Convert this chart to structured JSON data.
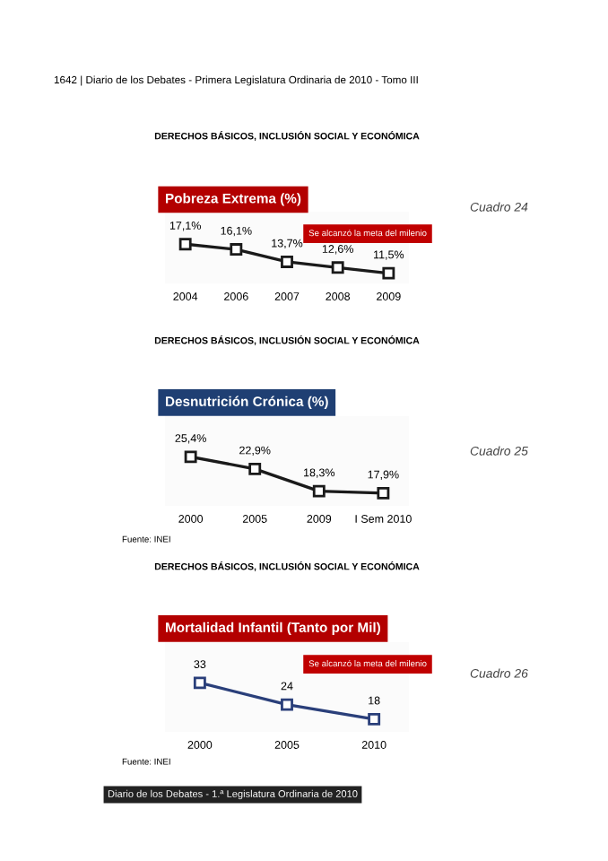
{
  "chart_data": [
    {
      "type": "line",
      "title": "Pobreza Extrema (%)",
      "subtitle": "DERECHOS BÁSICOS, INCLUSIÓN SOCIAL Y ECONÓMICA",
      "categories": [
        "2004",
        "2006",
        "2007",
        "2008",
        "2009"
      ],
      "series": [
        {
          "color": "#1a1a1a",
          "values": [
            17.1,
            16.1,
            13.7,
            12.6,
            11.5
          ],
          "value_labels": [
            "17,1%",
            "16,1%",
            "13,7%",
            "12,6%",
            "11,5%"
          ]
        }
      ],
      "marker": "square",
      "line_style": "solid",
      "tick_labels": "x",
      "annotations": [
        "1642 | Diario de los Debates - Primera Legislatura Ordinaria de 2010 - Tomo III",
        "Se alcanzó la meta del milenio",
        "Cuadro 24"
      ]
    },
    {
      "type": "line",
      "title": "Desnutrición Crónica (%)",
      "subtitle": "DERECHOS BÁSICOS, INCLUSIÓN SOCIAL Y ECONÓMICA",
      "categories": [
        "2000",
        "2005",
        "2009",
        "I Sem 2010"
      ],
      "series": [
        {
          "color": "#1a1a1a",
          "values": [
            25.4,
            22.9,
            18.3,
            17.9
          ],
          "value_labels": [
            "25,4%",
            "22,9%",
            "18,3%",
            "17,9%"
          ]
        }
      ],
      "marker": "square",
      "line_style": "solid",
      "tick_labels": "x",
      "annotations": [
        "Fuente: INEI",
        "Cuadro 25"
      ]
    },
    {
      "type": "line",
      "title": "Mortalidad Infantil (Tanto por Mil)",
      "subtitle": "DERECHOS BÁSICOS, INCLUSIÓN SOCIAL Y ECONÓMICA",
      "categories": [
        "2000",
        "2005",
        "2010"
      ],
      "series": [
        {
          "color": "#2a3f7a",
          "values": [
            33,
            24,
            18
          ]
        }
      ],
      "data_labels": true,
      "marker": "square",
      "line_style": "solid",
      "tick_labels": "x",
      "annotations": [
        "Se alcanzó la meta del milenio",
        "Fuente: INEI",
        "Cuadro 26",
        "Diario de los Debates - 1.ª Legislatura Ordinaria de 2010"
      ]
    }
  ]
}
